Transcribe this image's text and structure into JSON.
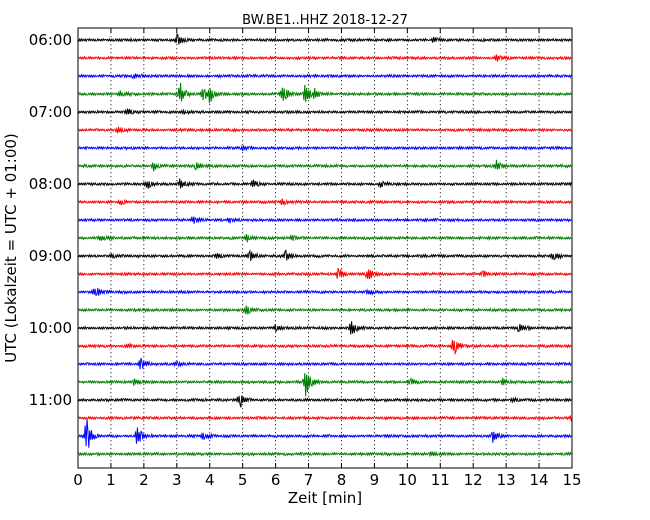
{
  "chart_data": {
    "type": "line",
    "subtype": "dayplot-seismogram",
    "title": "BW.BE1..HHZ 2018-12-27",
    "xlabel": "Zeit  [min]",
    "ylabel": "UTC (Lokalzeit = UTC + 01:00)",
    "xlim": [
      0,
      15
    ],
    "x_ticks": [
      "0",
      "1",
      "2",
      "3",
      "4",
      "5",
      "6",
      "7",
      "8",
      "9",
      "10",
      "11",
      "12",
      "13",
      "14",
      "15"
    ],
    "y_tick_labels": [
      "06:00",
      "07:00",
      "08:00",
      "09:00",
      "10:00",
      "11:00"
    ],
    "grid": "vertical dotted",
    "trace_colors": [
      "#000000",
      "#ff0000",
      "#0000ff",
      "#008000"
    ],
    "traces": [
      {
        "start": "06:00",
        "events": [
          [
            3.0,
            0.25
          ],
          [
            10.8,
            0.15
          ]
        ]
      },
      {
        "start": "06:15",
        "events": [
          [
            12.7,
            0.15
          ]
        ]
      },
      {
        "start": "06:30",
        "events": [
          [
            1.7,
            0.12
          ]
        ]
      },
      {
        "start": "06:45",
        "events": [
          [
            1.3,
            0.15
          ],
          [
            3.1,
            0.55
          ],
          [
            3.8,
            0.35
          ],
          [
            4.0,
            0.4
          ],
          [
            6.2,
            0.6
          ],
          [
            6.9,
            0.55
          ],
          [
            7.2,
            0.25
          ]
        ]
      },
      {
        "start": "07:00",
        "events": [
          [
            1.5,
            0.15
          ],
          [
            3.2,
            0.1
          ]
        ]
      },
      {
        "start": "07:15",
        "events": [
          [
            1.2,
            0.12
          ]
        ]
      },
      {
        "start": "07:30",
        "events": [
          [
            5.0,
            0.1
          ]
        ]
      },
      {
        "start": "07:45",
        "events": [
          [
            2.3,
            0.2
          ],
          [
            3.6,
            0.18
          ],
          [
            12.7,
            0.3
          ]
        ]
      },
      {
        "start": "08:00",
        "events": [
          [
            2.1,
            0.2
          ],
          [
            3.1,
            0.3
          ],
          [
            5.3,
            0.25
          ],
          [
            9.2,
            0.15
          ],
          [
            15.0,
            0.2
          ]
        ]
      },
      {
        "start": "08:15",
        "events": [
          [
            1.3,
            0.12
          ],
          [
            6.2,
            0.12
          ]
        ]
      },
      {
        "start": "08:30",
        "events": [
          [
            3.5,
            0.15
          ],
          [
            4.6,
            0.12
          ]
        ]
      },
      {
        "start": "08:45",
        "events": [
          [
            0.7,
            0.2
          ],
          [
            5.1,
            0.2
          ],
          [
            6.5,
            0.1
          ]
        ]
      },
      {
        "start": "09:00",
        "events": [
          [
            1.0,
            0.12
          ],
          [
            4.2,
            0.1
          ],
          [
            5.2,
            0.3
          ],
          [
            6.3,
            0.3
          ],
          [
            14.4,
            0.25
          ]
        ]
      },
      {
        "start": "09:15",
        "events": [
          [
            7.9,
            0.3
          ],
          [
            8.8,
            0.35
          ],
          [
            12.3,
            0.12
          ]
        ]
      },
      {
        "start": "09:30",
        "events": [
          [
            0.5,
            0.3
          ],
          [
            8.8,
            0.12
          ]
        ]
      },
      {
        "start": "09:45",
        "events": [
          [
            5.1,
            0.2
          ]
        ]
      },
      {
        "start": "10:00",
        "events": [
          [
            6.0,
            0.15
          ],
          [
            8.3,
            0.4
          ],
          [
            13.4,
            0.25
          ]
        ]
      },
      {
        "start": "10:15",
        "events": [
          [
            1.5,
            0.12
          ],
          [
            11.4,
            0.45
          ]
        ]
      },
      {
        "start": "10:30",
        "events": [
          [
            1.9,
            0.35
          ],
          [
            3.0,
            0.12
          ]
        ]
      },
      {
        "start": "10:45",
        "events": [
          [
            1.7,
            0.15
          ],
          [
            6.9,
            0.9
          ],
          [
            10.1,
            0.15
          ],
          [
            12.9,
            0.15
          ]
        ]
      },
      {
        "start": "11:00",
        "events": [
          [
            4.9,
            0.45
          ],
          [
            13.2,
            0.1
          ]
        ]
      },
      {
        "start": "11:15",
        "events": [
          [
            15.0,
            0.2
          ]
        ]
      },
      {
        "start": "11:30",
        "events": [
          [
            0.25,
            0.9
          ],
          [
            1.8,
            0.45
          ],
          [
            3.8,
            0.15
          ],
          [
            12.6,
            0.3
          ]
        ]
      },
      {
        "start": "11:45",
        "events": [
          [
            10.7,
            0.1
          ]
        ]
      }
    ]
  }
}
